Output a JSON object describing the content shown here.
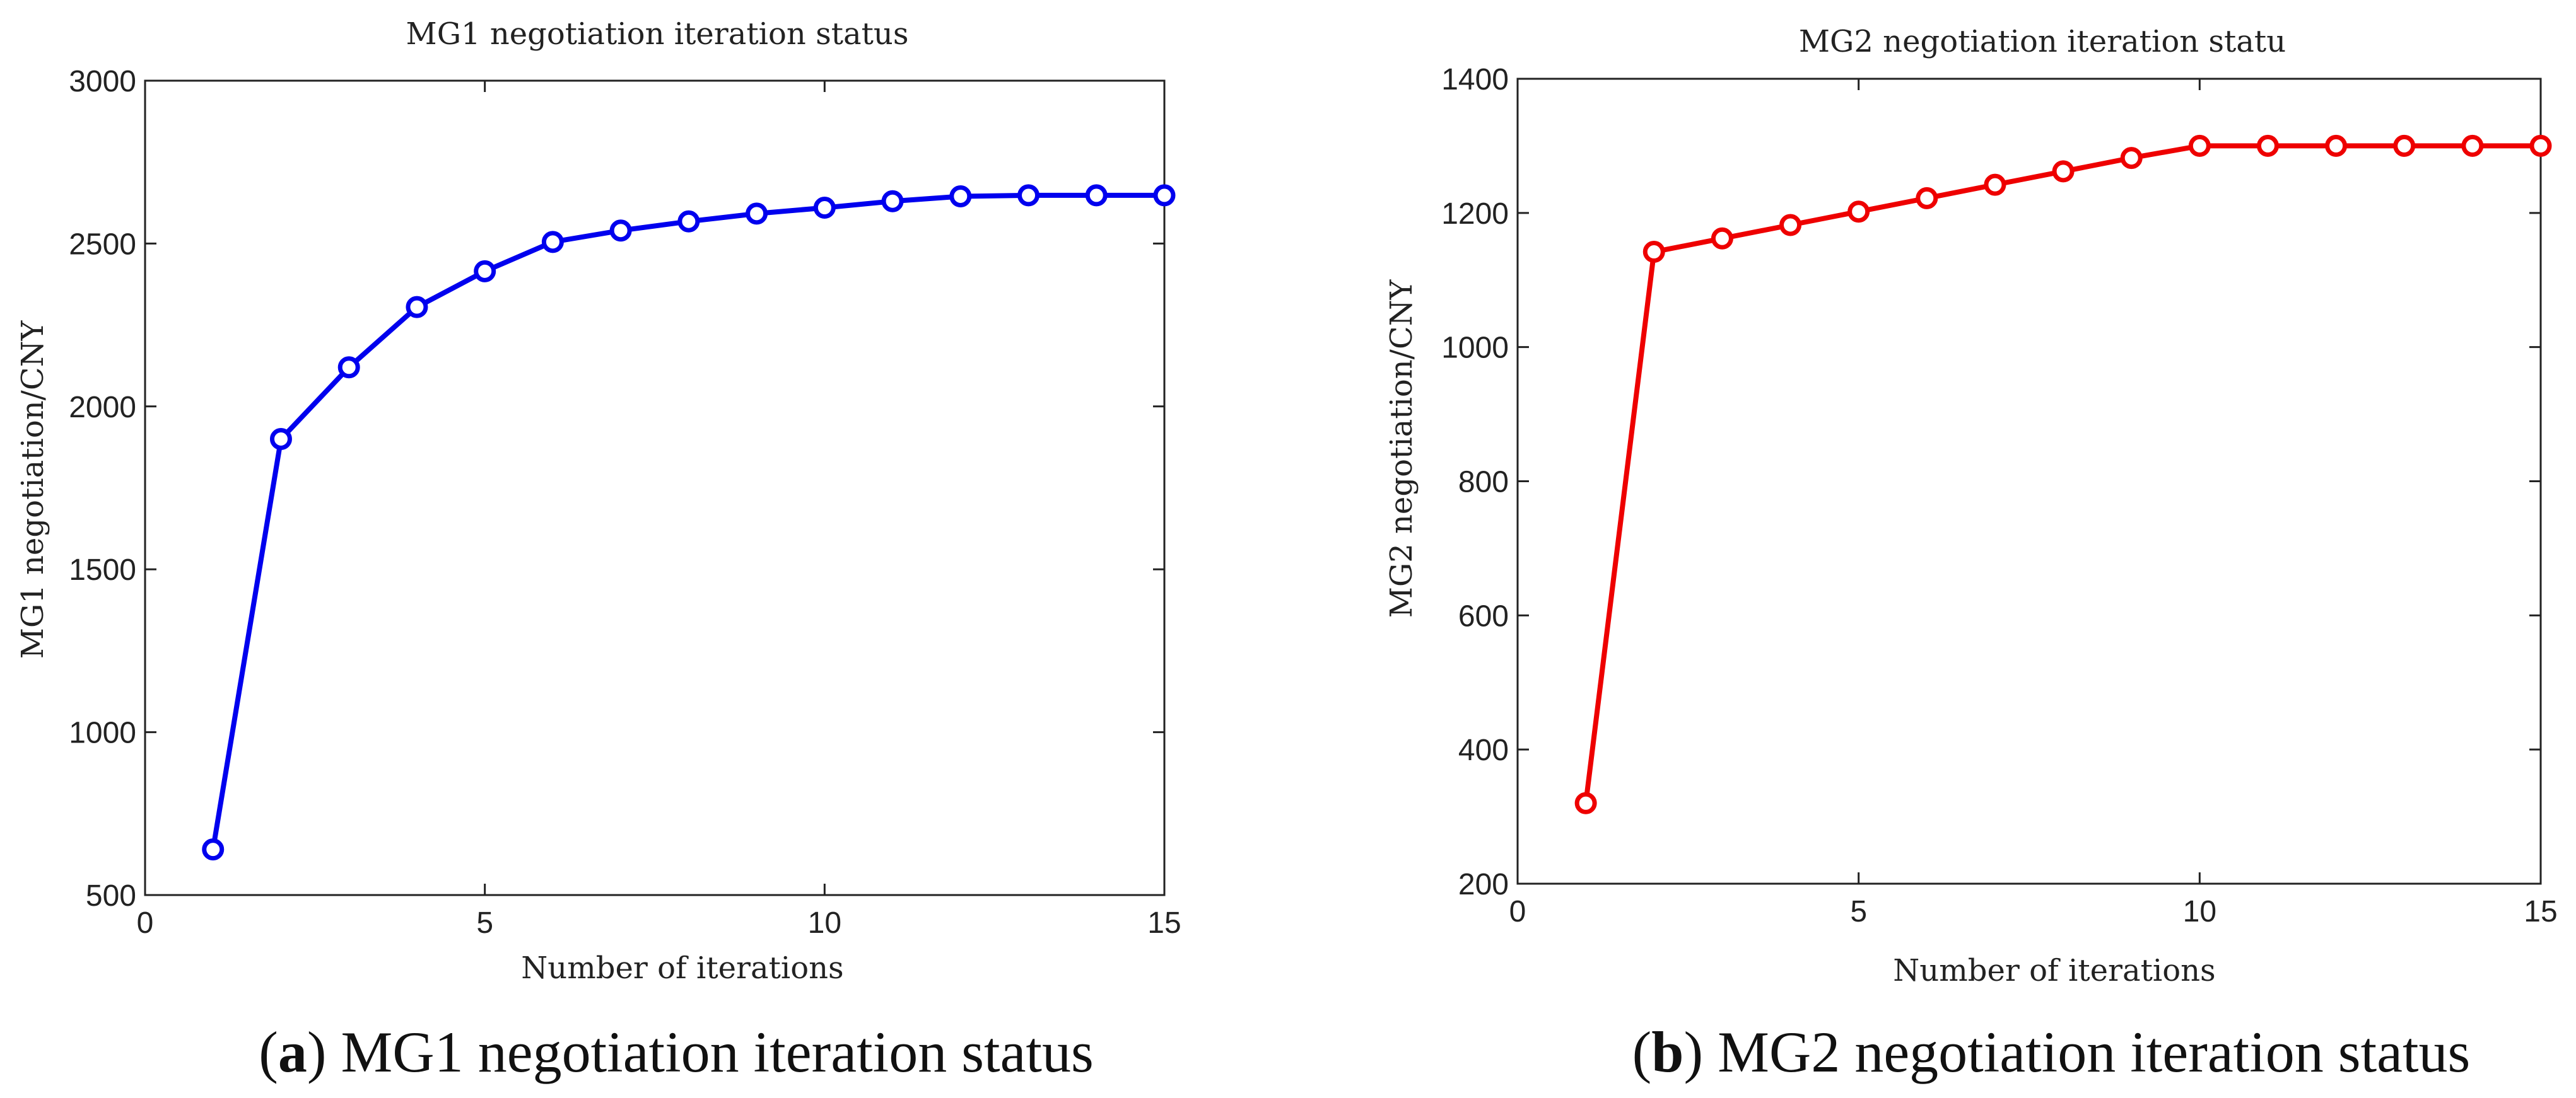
{
  "chart_data": [
    {
      "type": "line",
      "title": "MG1 negotiation iteration status",
      "xlabel": "Number of iterations",
      "ylabel": "MG1 negotiation/CNY",
      "xlim": [
        0,
        15
      ],
      "ylim": [
        500,
        3000
      ],
      "xticks": [
        0,
        5,
        10,
        15
      ],
      "yticks": [
        500,
        1000,
        1500,
        2000,
        2500,
        3000
      ],
      "grid": false,
      "color": "#0000ee",
      "marker": "circle",
      "x": [
        1,
        2,
        3,
        4,
        5,
        6,
        7,
        8,
        9,
        10,
        11,
        12,
        13,
        14,
        15
      ],
      "y": [
        640,
        1900,
        2120,
        2305,
        2415,
        2505,
        2540,
        2568,
        2592,
        2610,
        2630,
        2645,
        2648,
        2648,
        2648
      ],
      "caption": {
        "label": "a",
        "text": " MG1 negotiation iteration status"
      }
    },
    {
      "type": "line",
      "title": "MG2 negotiation iteration statu",
      "xlabel": "Number of iterations",
      "ylabel": "MG2 negotiation/CNY",
      "xlim": [
        0,
        15
      ],
      "ylim": [
        200,
        1400
      ],
      "xticks": [
        0,
        5,
        10,
        15
      ],
      "yticks": [
        200,
        400,
        600,
        800,
        1000,
        1200,
        1400
      ],
      "grid": false,
      "color": "#ee0000",
      "marker": "circle",
      "x": [
        1,
        2,
        3,
        4,
        5,
        6,
        7,
        8,
        9,
        10,
        11,
        12,
        13,
        14,
        15
      ],
      "y": [
        320,
        1142,
        1162,
        1182,
        1202,
        1222,
        1242,
        1262,
        1282,
        1300,
        1300,
        1300,
        1300,
        1300,
        1300
      ],
      "caption": {
        "label": "b",
        "text": " MG2 negotiation iteration status"
      }
    }
  ]
}
